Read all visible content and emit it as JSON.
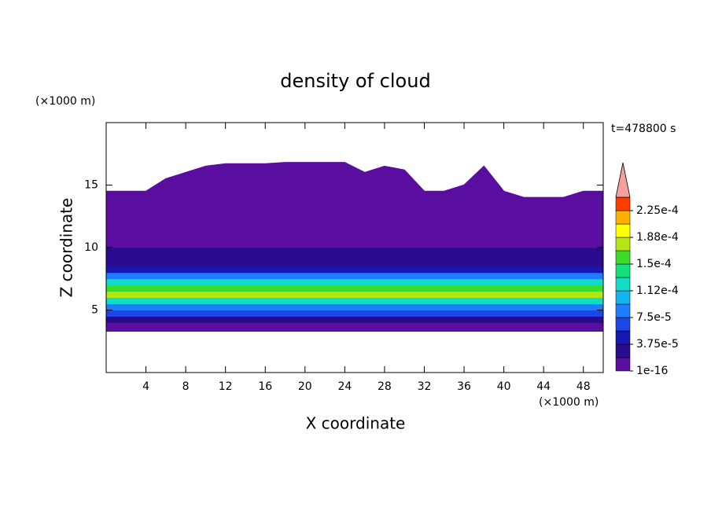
{
  "chart_data": {
    "type": "contour",
    "title": "density of cloud",
    "xlabel": "X coordinate",
    "ylabel": "Z coordinate",
    "x_unit": "(×1000 m)",
    "y_unit": "(×1000 m)",
    "annotation": "t=478800 s",
    "xlim": [
      0,
      50
    ],
    "ylim": [
      0,
      20
    ],
    "xticks": [
      4,
      8,
      12,
      16,
      20,
      24,
      28,
      32,
      36,
      40,
      44,
      48
    ],
    "yticks": [
      5,
      10,
      15
    ],
    "x": [
      0,
      2,
      4,
      6,
      8,
      10,
      12,
      14,
      16,
      18,
      20,
      22,
      24,
      26,
      28,
      30,
      32,
      34,
      36,
      38,
      40,
      42,
      44,
      46,
      48,
      50
    ],
    "cloud_top": [
      14.5,
      14.5,
      14.5,
      15.5,
      16,
      16.5,
      16.7,
      16.7,
      16.7,
      16.8,
      16.8,
      16.8,
      16.8,
      16,
      16.5,
      16.2,
      14.5,
      14.5,
      15,
      16.5,
      14.5,
      14,
      14,
      14,
      14.5,
      14.5
    ],
    "cloud_base": 3.3,
    "profile_z": [
      3.3,
      4,
      4.5,
      5,
      5.5,
      6,
      6.5,
      7,
      7.5,
      8,
      8.5,
      9,
      9.5,
      10,
      11,
      12,
      13,
      14,
      15,
      16
    ],
    "profile_values": [
      1e-05,
      3e-05,
      6e-05,
      9e-05,
      0.00013,
      0.00017,
      0.00016,
      0.00012,
      8e-05,
      5e-05,
      3.5e-05,
      2.5e-05,
      2e-05,
      1.5e-05,
      1e-05,
      8e-06,
      5e-06,
      3e-06,
      2e-06,
      1e-06
    ],
    "levels": [
      1e-16,
      1.875e-05,
      3.75e-05,
      5.625e-05,
      7.5e-05,
      9.375e-05,
      0.0001125,
      0.00013125,
      0.00015,
      0.00016875,
      0.0001875,
      0.00020625,
      0.000225,
      0.00024375
    ],
    "colors": [
      "#5a0ea0",
      "#2a0a8e",
      "#1616b2",
      "#1e46e6",
      "#1e7cff",
      "#14b4f0",
      "#10dcc8",
      "#14e07c",
      "#3cdc28",
      "#b4e614",
      "#ffff00",
      "#ffb000",
      "#ff3c00"
    ],
    "extend": "max",
    "extend_color": "#f4a0a0",
    "colorbar_ticks": [
      {
        "value": 1e-16,
        "label": "1e-16"
      },
      {
        "value": 3.75e-05,
        "label": "3.75e-5"
      },
      {
        "value": 7.5e-05,
        "label": "7.5e-5"
      },
      {
        "value": 0.0001125,
        "label": "1.12e-4"
      },
      {
        "value": 0.00015,
        "label": "1.5e-4"
      },
      {
        "value": 0.0001875,
        "label": "1.88e-4"
      },
      {
        "value": 0.000225,
        "label": "2.25e-4"
      }
    ]
  }
}
